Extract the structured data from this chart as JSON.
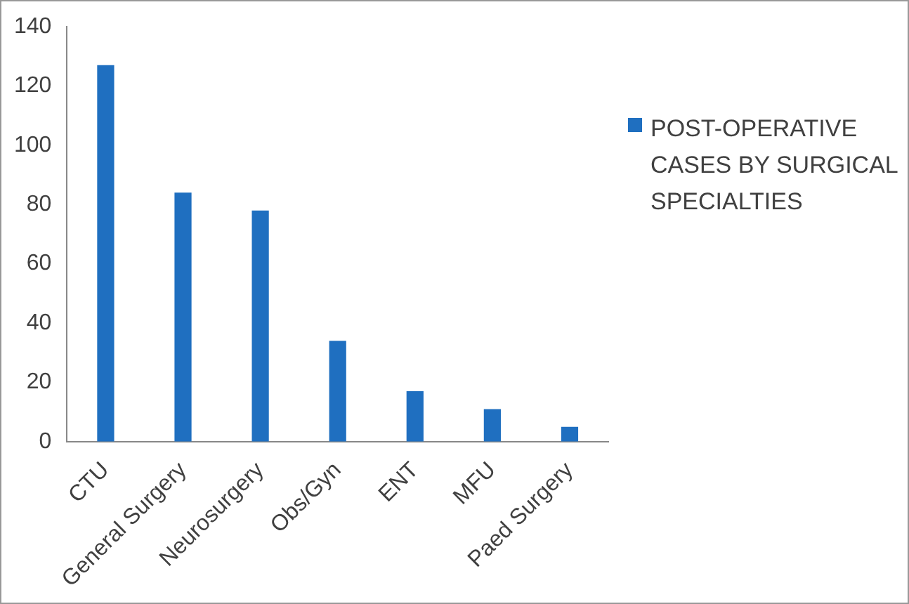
{
  "chart_data": {
    "type": "bar",
    "categories": [
      "CTU",
      "General Surgery",
      "Neurosurgery",
      "Obs/Gyn",
      "ENT",
      "MFU",
      "Paed Surgery"
    ],
    "series": [
      {
        "name": "POST-OPERATIVE CASES BY SURGICAL SPECIALTIES",
        "color": "#1f6fc0",
        "values": [
          127,
          84,
          78,
          34,
          17,
          11,
          5
        ]
      }
    ],
    "ylim": [
      0,
      140
    ],
    "yticks": [
      0,
      20,
      40,
      60,
      80,
      100,
      120,
      140
    ],
    "legend": "right"
  }
}
